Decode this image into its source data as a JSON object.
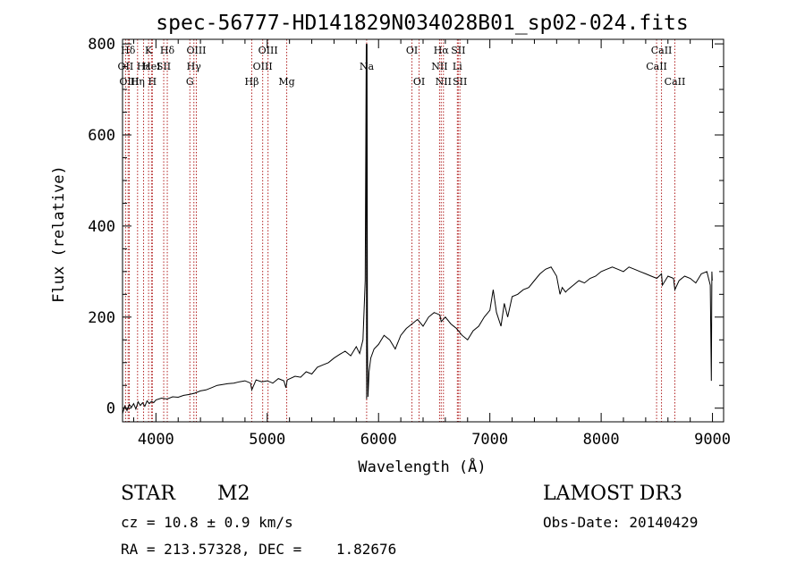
{
  "chart_data": {
    "type": "line",
    "title": "spec-56777-HD141829N034028B01_sp02-024.fits",
    "xlabel": "Wavelength (Å)",
    "ylabel": "Flux (relative)",
    "xlim": [
      3700,
      9100
    ],
    "ylim": [
      -30,
      810
    ],
    "xticks": [
      4000,
      5000,
      6000,
      7000,
      8000,
      9000
    ],
    "yticks": [
      0,
      200,
      400,
      600,
      800
    ],
    "grid": false,
    "series": [
      {
        "name": "spectrum",
        "x": [
          3700,
          3720,
          3740,
          3760,
          3780,
          3800,
          3820,
          3840,
          3860,
          3880,
          3900,
          3920,
          3940,
          3960,
          3980,
          4000,
          4050,
          4100,
          4150,
          4200,
          4250,
          4300,
          4350,
          4400,
          4450,
          4500,
          4550,
          4600,
          4650,
          4700,
          4750,
          4800,
          4850,
          4861,
          4900,
          4950,
          5000,
          5050,
          5100,
          5150,
          5167,
          5180,
          5250,
          5300,
          5350,
          5400,
          5450,
          5500,
          5550,
          5600,
          5650,
          5700,
          5750,
          5800,
          5830,
          5860,
          5880,
          5890,
          5893,
          5896,
          5900,
          5905,
          5915,
          5930,
          5960,
          6000,
          6050,
          6100,
          6150,
          6200,
          6250,
          6300,
          6350,
          6400,
          6450,
          6500,
          6550,
          6563,
          6600,
          6650,
          6700,
          6750,
          6800,
          6850,
          6900,
          6950,
          7000,
          7030,
          7060,
          7100,
          7130,
          7160,
          7200,
          7250,
          7300,
          7350,
          7400,
          7450,
          7500,
          7550,
          7600,
          7630,
          7650,
          7680,
          7700,
          7750,
          7800,
          7850,
          7900,
          7950,
          8000,
          8050,
          8100,
          8150,
          8200,
          8250,
          8300,
          8350,
          8400,
          8450,
          8500,
          8542,
          8550,
          8600,
          8650,
          8662,
          8700,
          8750,
          8800,
          8850,
          8900,
          8950,
          8980,
          8990,
          8995,
          8998
        ],
        "values": [
          -12,
          5,
          -5,
          8,
          2,
          10,
          -2,
          14,
          6,
          12,
          4,
          16,
          10,
          15,
          12,
          18,
          22,
          20,
          25,
          24,
          28,
          30,
          33,
          38,
          40,
          45,
          50,
          52,
          54,
          55,
          58,
          60,
          55,
          40,
          62,
          58,
          60,
          55,
          65,
          60,
          45,
          62,
          70,
          68,
          80,
          75,
          90,
          95,
          100,
          110,
          118,
          125,
          115,
          135,
          120,
          150,
          280,
          800,
          20,
          800,
          140,
          25,
          80,
          110,
          130,
          140,
          160,
          150,
          130,
          160,
          175,
          185,
          195,
          180,
          200,
          210,
          205,
          190,
          200,
          185,
          175,
          160,
          150,
          170,
          180,
          200,
          215,
          260,
          210,
          180,
          230,
          200,
          245,
          250,
          260,
          265,
          280,
          295,
          305,
          310,
          290,
          250,
          265,
          255,
          260,
          270,
          280,
          275,
          285,
          290,
          300,
          305,
          310,
          305,
          300,
          310,
          305,
          300,
          295,
          290,
          285,
          295,
          270,
          290,
          285,
          260,
          280,
          290,
          285,
          275,
          295,
          300,
          270,
          60,
          300,
          280
        ]
      }
    ],
    "line_markers": [
      {
        "label": "Hδ",
        "wavelength": 3750,
        "row": 1
      },
      {
        "label": "OII",
        "wavelength": 3727,
        "row": 2
      },
      {
        "label": "OIII",
        "wavelength": 3760,
        "row": 3
      },
      {
        "label": "K",
        "wavelength": 3934,
        "row": 1
      },
      {
        "label": "Hε",
        "wavelength": 3889,
        "row": 2
      },
      {
        "label": "Hη",
        "wavelength": 3835,
        "row": 3
      },
      {
        "label": "HeI",
        "wavelength": 3960,
        "row": 2
      },
      {
        "label": "H",
        "wavelength": 3968,
        "row": 3
      },
      {
        "label": "Hδ",
        "wavelength": 4102,
        "row": 1
      },
      {
        "label": "SII",
        "wavelength": 4070,
        "row": 2
      },
      {
        "label": "OIII",
        "wavelength": 4363,
        "row": 1
      },
      {
        "label": "Hγ",
        "wavelength": 4341,
        "row": 2
      },
      {
        "label": "G",
        "wavelength": 4305,
        "row": 3
      },
      {
        "label": "Hβ",
        "wavelength": 4861,
        "row": 3
      },
      {
        "label": "OIII",
        "wavelength": 5007,
        "row": 1
      },
      {
        "label": "OIII",
        "wavelength": 4959,
        "row": 2
      },
      {
        "label": "Mg",
        "wavelength": 5175,
        "row": 3
      },
      {
        "label": "Na",
        "wavelength": 5893,
        "row": 2
      },
      {
        "label": "OI",
        "wavelength": 6300,
        "row": 1
      },
      {
        "label": "OI",
        "wavelength": 6364,
        "row": 3
      },
      {
        "label": "Hα",
        "wavelength": 6563,
        "row": 1
      },
      {
        "label": "NII",
        "wavelength": 6548,
        "row": 2
      },
      {
        "label": "NII",
        "wavelength": 6583,
        "row": 3
      },
      {
        "label": "SII",
        "wavelength": 6716,
        "row": 1
      },
      {
        "label": "Li",
        "wavelength": 6708,
        "row": 2
      },
      {
        "label": "SII",
        "wavelength": 6731,
        "row": 3
      },
      {
        "label": "CaII",
        "wavelength": 8542,
        "row": 1
      },
      {
        "label": "CaII",
        "wavelength": 8498,
        "row": 2
      },
      {
        "label": "CaII",
        "wavelength": 8662,
        "row": 3
      }
    ]
  },
  "info": {
    "class": "STAR",
    "subclass": "M2",
    "survey": "LAMOST DR3",
    "redshift": "cz = 10.8 ± 0.9 km/s",
    "obs_date": "Obs-Date: 20140429",
    "coords": "RA = 213.57328, DEC =    1.82676"
  },
  "colors": {
    "line_marker": "#b22222",
    "spectrum": "#000000"
  }
}
